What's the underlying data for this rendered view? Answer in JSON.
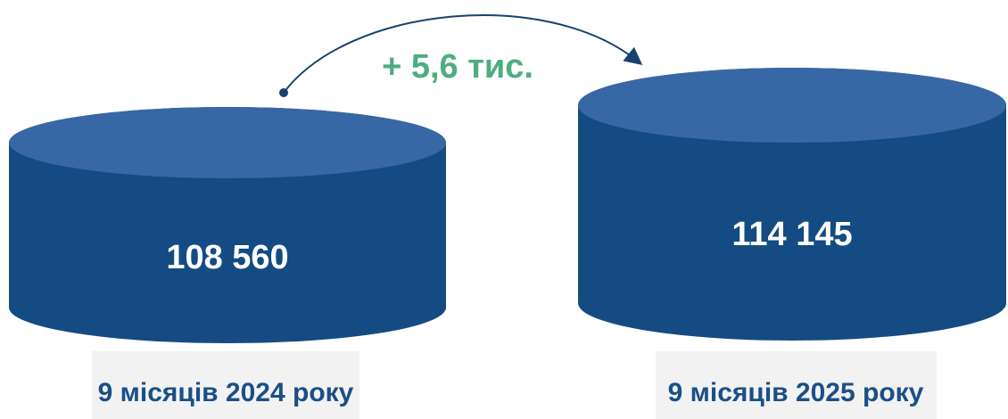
{
  "chart_data": {
    "type": "bar",
    "categories": [
      "9 місяців 2024 року",
      "9 місяців 2025 року"
    ],
    "values": [
      108560,
      114145
    ],
    "value_labels": [
      "108 560",
      "114 145"
    ],
    "annotation": "+ 5,6 тис.",
    "title": "",
    "xlabel": "",
    "ylabel": ""
  },
  "colors": {
    "cylinder_body": "#144b82",
    "cylinder_top": "#3867a6",
    "value_text": "#ffffff",
    "annotation_text": "#4cae7f",
    "arrow": "#17416f",
    "category_text": "#1b4f86",
    "category_bg": "#f2f2f2"
  }
}
